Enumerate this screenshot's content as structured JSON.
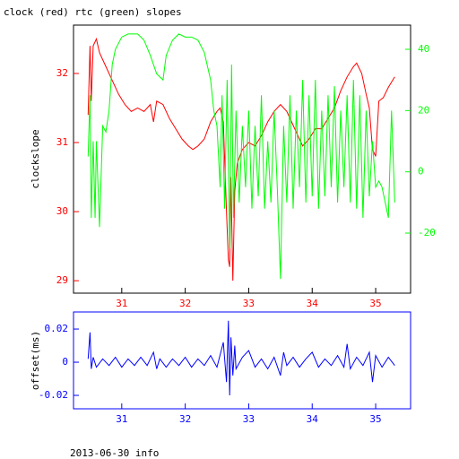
{
  "footer": "2013-06-30 info",
  "chart_data": [
    {
      "type": "line",
      "title": "clock (red) rtc (green) slopes",
      "ylabel": "clockslope",
      "xlim": [
        30.24,
        35.55
      ],
      "xticks": [
        31,
        32,
        33,
        34,
        35
      ],
      "ylim": [
        28.82,
        32.7
      ],
      "yticks": [
        29,
        30,
        31,
        32
      ],
      "ycolor": "#ff0000",
      "y2lim": [
        -39.6,
        47.9
      ],
      "y2ticks": [
        -20,
        0,
        20,
        40
      ],
      "y2color": "#00ff00",
      "frame_color": "#000000",
      "series": [
        {
          "color": "#ff0000",
          "x": [
            30.47,
            30.5,
            30.52,
            30.55,
            30.6,
            30.65,
            30.75,
            30.85,
            30.95,
            31.05,
            31.15,
            31.25,
            31.35,
            31.45,
            31.5,
            31.55,
            31.65,
            31.75,
            31.85,
            31.95,
            32.05,
            32.12,
            32.2,
            32.3,
            32.4,
            32.5,
            32.55,
            32.6,
            32.65,
            32.68,
            32.7,
            32.72,
            32.75,
            32.78,
            32.82,
            32.9,
            33.0,
            33.1,
            33.2,
            33.3,
            33.4,
            33.5,
            33.6,
            33.7,
            33.8,
            33.85,
            33.95,
            34.05,
            34.15,
            34.25,
            34.35,
            34.45,
            34.55,
            34.65,
            34.7,
            34.78,
            34.85,
            34.9,
            34.95,
            35.0,
            35.05,
            35.12,
            35.2,
            35.3
          ],
          "values": [
            31.4,
            32.4,
            31.6,
            32.4,
            32.5,
            32.3,
            32.1,
            31.9,
            31.7,
            31.55,
            31.45,
            31.5,
            31.45,
            31.55,
            31.3,
            31.6,
            31.55,
            31.35,
            31.2,
            31.05,
            30.95,
            30.9,
            30.95,
            31.05,
            31.3,
            31.45,
            31.5,
            31.3,
            30.0,
            29.3,
            29.2,
            30.5,
            29.0,
            30.3,
            30.7,
            30.9,
            31.0,
            30.95,
            31.1,
            31.3,
            31.45,
            31.55,
            31.45,
            31.25,
            31.05,
            30.95,
            31.05,
            31.2,
            31.2,
            31.35,
            31.5,
            31.75,
            31.95,
            32.1,
            32.15,
            32.0,
            31.7,
            31.5,
            30.9,
            30.8,
            31.6,
            31.65,
            31.8,
            31.95
          ]
        },
        {
          "color": "#00ff00",
          "axis": "y2",
          "x": [
            30.47,
            30.5,
            30.52,
            30.55,
            30.58,
            30.6,
            30.65,
            30.7,
            30.75,
            30.8,
            30.85,
            30.9,
            31.0,
            31.1,
            31.25,
            31.35,
            31.45,
            31.55,
            31.65,
            31.7,
            31.8,
            31.9,
            32.0,
            32.1,
            32.2,
            32.3,
            32.4,
            32.45,
            32.5,
            32.55,
            32.58,
            32.62,
            32.66,
            32.7,
            32.73,
            32.76,
            32.8,
            32.85,
            32.9,
            32.95,
            33.0,
            33.05,
            33.1,
            33.15,
            33.2,
            33.25,
            33.3,
            33.35,
            33.4,
            33.45,
            33.5,
            33.55,
            33.6,
            33.65,
            33.7,
            33.75,
            33.8,
            33.85,
            33.9,
            33.95,
            34.0,
            34.05,
            34.1,
            34.15,
            34.2,
            34.25,
            34.3,
            34.35,
            34.4,
            34.45,
            34.5,
            34.55,
            34.6,
            34.65,
            34.7,
            34.75,
            34.8,
            34.85,
            34.9,
            34.95,
            35.0,
            35.05,
            35.1,
            35.15,
            35.2,
            35.25,
            35.3
          ],
          "values": [
            5,
            25,
            -15,
            10,
            -15,
            10,
            -18,
            15,
            13,
            20,
            35,
            40,
            44,
            45,
            45,
            43,
            38,
            32,
            30,
            38,
            43,
            45,
            44,
            44,
            43,
            39,
            30,
            20,
            15,
            -5,
            25,
            -12,
            30,
            -25,
            35,
            -15,
            20,
            -10,
            15,
            -5,
            20,
            -12,
            15,
            -8,
            25,
            -12,
            10,
            -10,
            20,
            -5,
            -35,
            15,
            -10,
            25,
            -12,
            20,
            -5,
            30,
            -10,
            25,
            -8,
            30,
            -12,
            20,
            -8,
            25,
            -5,
            28,
            -10,
            20,
            -5,
            25,
            -10,
            30,
            -12,
            25,
            -15,
            20,
            -8,
            10,
            -5,
            -3,
            -5,
            -10,
            -15,
            20,
            -10
          ]
        }
      ]
    },
    {
      "type": "line",
      "ylabel": "offset(ms)",
      "xlim": [
        30.24,
        35.55
      ],
      "xticks": [
        31,
        32,
        33,
        34,
        35
      ],
      "ylim": [
        -0.0281,
        0.0303
      ],
      "yticks": [
        -0.02,
        0,
        0.02
      ],
      "ycolor": "#0000ff",
      "frame_color": "#0000ff",
      "series": [
        {
          "color": "#0000ff",
          "x": [
            30.47,
            30.5,
            30.52,
            30.55,
            30.6,
            30.7,
            30.8,
            30.9,
            31.0,
            31.1,
            31.2,
            31.3,
            31.4,
            31.5,
            31.55,
            31.6,
            31.7,
            31.8,
            31.9,
            32.0,
            32.1,
            32.2,
            32.3,
            32.4,
            32.5,
            32.6,
            32.65,
            32.68,
            32.7,
            32.72,
            32.75,
            32.78,
            32.8,
            32.9,
            33.0,
            33.1,
            33.2,
            33.3,
            33.4,
            33.5,
            33.55,
            33.6,
            33.7,
            33.8,
            33.9,
            34.0,
            34.1,
            34.2,
            34.3,
            34.4,
            34.5,
            34.55,
            34.6,
            34.7,
            34.8,
            34.9,
            34.95,
            35.0,
            35.1,
            35.2,
            35.3
          ],
          "values": [
            0.002,
            0.018,
            -0.004,
            0.003,
            -0.003,
            0.002,
            -0.002,
            0.003,
            -0.003,
            0.002,
            -0.002,
            0.003,
            -0.002,
            0.006,
            -0.004,
            0.002,
            -0.003,
            0.002,
            -0.002,
            0.003,
            -0.003,
            0.002,
            -0.002,
            0.004,
            -0.003,
            0.012,
            -0.012,
            0.025,
            -0.02,
            0.015,
            -0.008,
            0.01,
            -0.004,
            0.003,
            0.007,
            -0.003,
            0.002,
            -0.004,
            0.003,
            -0.008,
            0.006,
            -0.002,
            0.003,
            -0.003,
            0.002,
            0.006,
            -0.003,
            0.002,
            -0.002,
            0.004,
            -0.003,
            0.011,
            -0.004,
            0.003,
            -0.002,
            0.006,
            -0.012,
            0.004,
            -0.003,
            0.003,
            -0.002
          ]
        }
      ]
    }
  ]
}
